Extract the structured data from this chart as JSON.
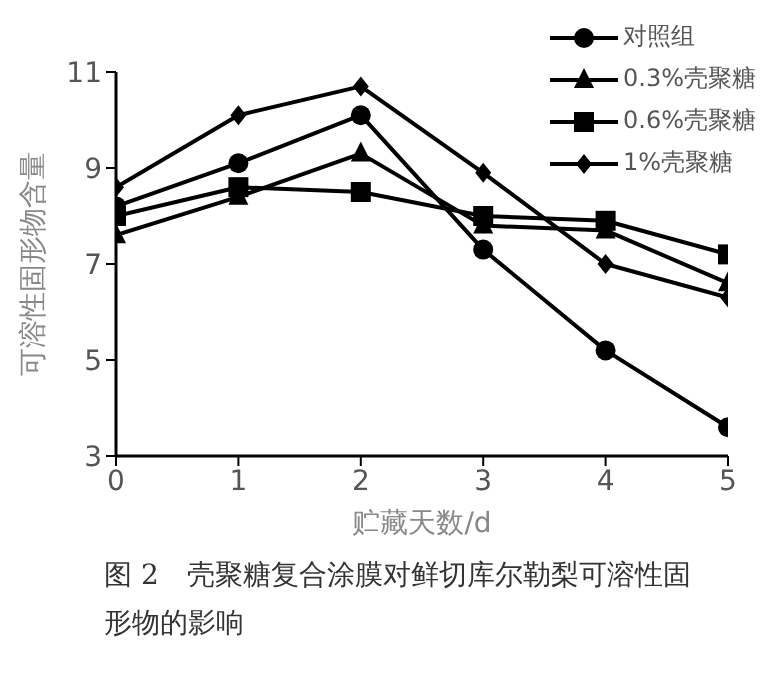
{
  "chart_data": {
    "type": "line",
    "xlabel": "贮藏天数/d",
    "ylabel": "可溶性固形物含量",
    "x": [
      0,
      1,
      2,
      3,
      4,
      5
    ],
    "series": [
      {
        "name": "对照组",
        "color": "#000000",
        "marker": "circle",
        "values": [
          8.2,
          9.1,
          10.1,
          7.3,
          5.2,
          3.6
        ]
      },
      {
        "name": "0.3%壳聚糖",
        "color": "#000000",
        "marker": "triangle",
        "values": [
          7.6,
          8.4,
          9.3,
          7.8,
          7.7,
          6.6
        ]
      },
      {
        "name": "0.6%壳聚糖",
        "color": "#000000",
        "marker": "square",
        "values": [
          8.0,
          8.6,
          8.5,
          8.0,
          7.9,
          7.2
        ]
      },
      {
        "name": "1%壳聚糖",
        "color": "#000000",
        "marker": "diamond",
        "values": [
          8.6,
          10.1,
          10.7,
          8.9,
          7.0,
          6.3
        ]
      }
    ],
    "xlim": [
      0,
      5
    ],
    "xticks": [
      0,
      1,
      2,
      3,
      4,
      5
    ],
    "ylim": [
      3,
      11
    ],
    "yticks": [
      3,
      5,
      7,
      9,
      11
    ],
    "grid": false,
    "legend": "top right",
    "line_style": "solid",
    "annotations": [
      "图 2　壳聚糖复合涂膜对鲜切库尔勒梨可溶性固形物的影响"
    ]
  }
}
